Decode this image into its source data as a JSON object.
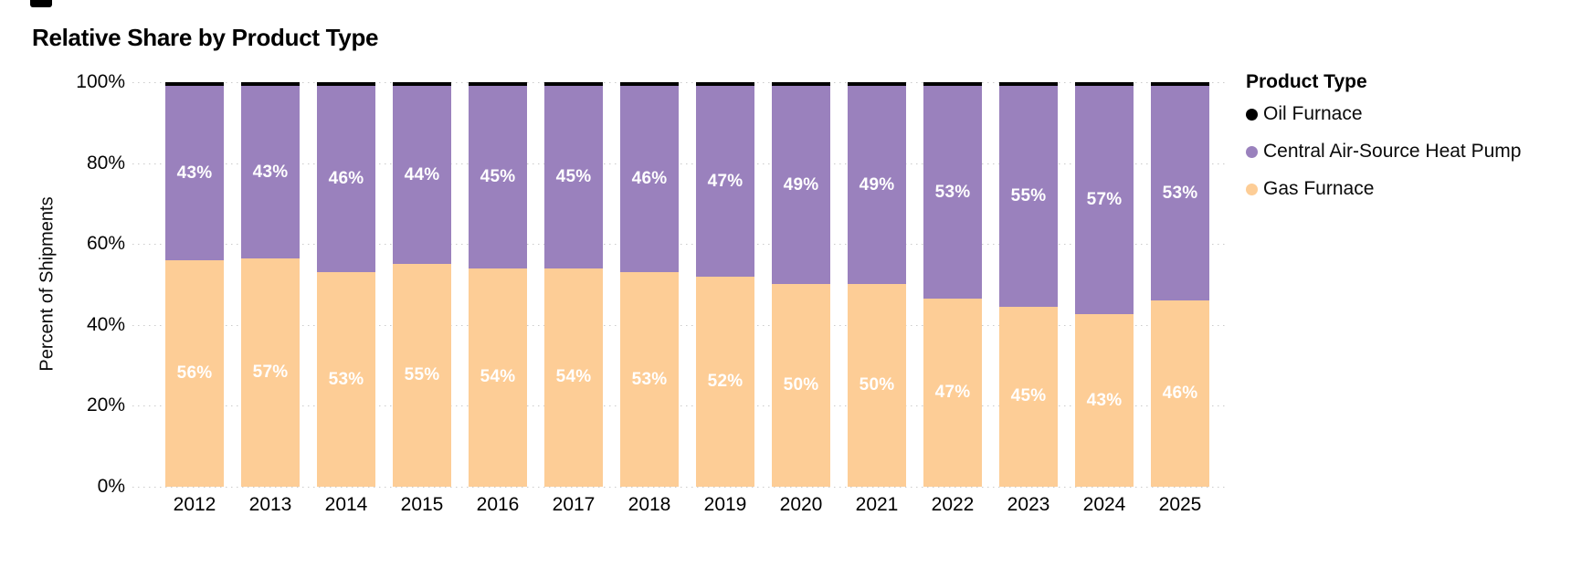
{
  "title": "Relative Share by Product Type",
  "legend": {
    "title": "Product Type",
    "items": [
      {
        "label": "Oil Furnace",
        "color": "#000000"
      },
      {
        "label": "Central Air-Source Heat Pump",
        "color": "#9A81BD"
      },
      {
        "label": "Gas Furnace",
        "color": "#FDCD96"
      }
    ]
  },
  "chart_data": {
    "type": "bar",
    "variant": "stacked-100-percent",
    "title": "Relative Share by Product Type",
    "xlabel": "",
    "ylabel": "Percent of Shipments",
    "ylim": [
      0,
      100
    ],
    "grid": "dotted-horizontal",
    "legend_position": "right",
    "y_ticks": [
      "0%",
      "20%",
      "40%",
      "60%",
      "80%",
      "100%"
    ],
    "categories": [
      "2012",
      "2013",
      "2014",
      "2015",
      "2016",
      "2017",
      "2018",
      "2019",
      "2020",
      "2021",
      "2022",
      "2023",
      "2024",
      "2025"
    ],
    "series": [
      {
        "name": "Gas Furnace",
        "color": "#FDCD96",
        "values": [
          56,
          57,
          53,
          55,
          54,
          54,
          53,
          52,
          50,
          50,
          47,
          45,
          43,
          46
        ],
        "labels": [
          "56%",
          "57%",
          "53%",
          "55%",
          "54%",
          "54%",
          "53%",
          "52%",
          "50%",
          "50%",
          "47%",
          "45%",
          "43%",
          "46%"
        ]
      },
      {
        "name": "Central Air-Source Heat Pump",
        "color": "#9A81BD",
        "values": [
          43,
          43,
          46,
          44,
          45,
          45,
          46,
          47,
          49,
          49,
          53,
          55,
          57,
          53
        ],
        "labels": [
          "43%",
          "43%",
          "46%",
          "44%",
          "45%",
          "45%",
          "46%",
          "47%",
          "49%",
          "49%",
          "53%",
          "55%",
          "57%",
          "53%"
        ]
      },
      {
        "name": "Oil Furnace",
        "color": "#000000",
        "values": [
          1,
          1,
          1,
          1,
          1,
          1,
          1,
          1,
          1,
          1,
          1,
          1,
          1,
          1
        ],
        "labels": [
          "",
          "",
          "",
          "",
          "",
          "",
          "",
          "",
          "",
          "",
          "",
          "",
          "",
          ""
        ]
      }
    ]
  }
}
